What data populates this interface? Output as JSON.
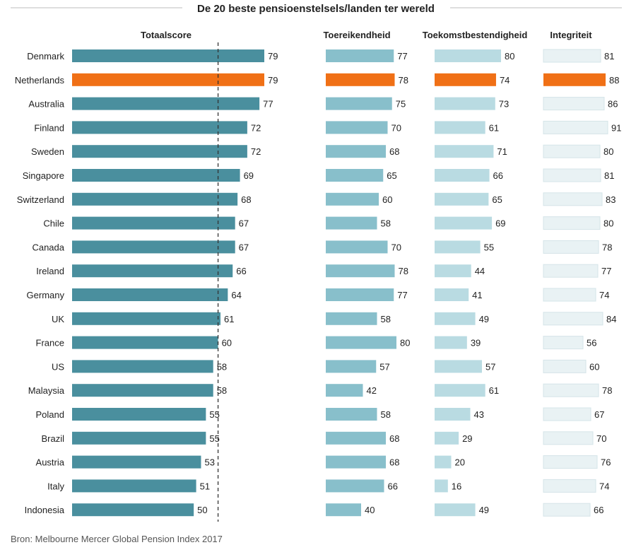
{
  "chart_data": {
    "type": "bar",
    "title": "De 20 beste pensioenstelsels/landen ter wereld",
    "source": "Bron: Melbourne Mercer Global Pension Index 2017",
    "categories": [
      "Denmark",
      "Netherlands",
      "Australia",
      "Finland",
      "Sweden",
      "Singapore",
      "Switzerland",
      "Chile",
      "Canada",
      "Ireland",
      "Germany",
      "UK",
      "France",
      "US",
      "Malaysia",
      "Poland",
      "Brazil",
      "Austria",
      "Italy",
      "Indonesia"
    ],
    "highlight_category": "Netherlands",
    "reference_line": {
      "series": "Totaalscore",
      "value": 60
    },
    "colors": {
      "highlight": "#f07016",
      "Totaalscore": "#4a8f9e",
      "Toereikendheid": "#88bfcb",
      "Toekomstbestendigheid": "#b9dbe2",
      "Integriteit": "#e9f2f4"
    },
    "series": [
      {
        "name": "Totaalscore",
        "values": [
          79,
          79,
          77,
          72,
          72,
          69,
          68,
          67,
          67,
          66,
          64,
          61,
          60,
          58,
          58,
          55,
          55,
          53,
          51,
          50
        ]
      },
      {
        "name": "Toereikendheid",
        "values": [
          77,
          78,
          75,
          70,
          68,
          65,
          60,
          58,
          70,
          78,
          77,
          58,
          80,
          57,
          42,
          58,
          68,
          68,
          66,
          40
        ]
      },
      {
        "name": "Toekomstbestendigheid",
        "values": [
          80,
          74,
          73,
          61,
          71,
          66,
          65,
          69,
          55,
          44,
          41,
          49,
          39,
          57,
          61,
          43,
          29,
          20,
          16,
          49
        ]
      },
      {
        "name": "Integriteit",
        "values": [
          81,
          88,
          86,
          91,
          80,
          81,
          83,
          80,
          78,
          77,
          74,
          84,
          56,
          60,
          78,
          67,
          70,
          76,
          74,
          66
        ]
      }
    ]
  }
}
